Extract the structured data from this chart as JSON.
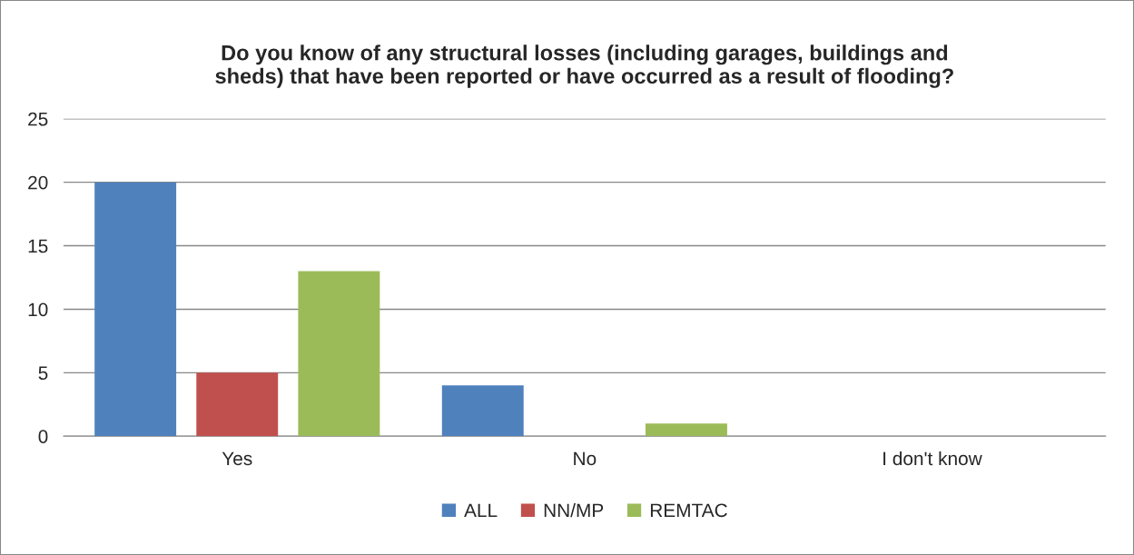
{
  "chart_data": {
    "type": "bar",
    "title": "Do you know of any structural losses (including garages, buildings and\nsheds) that have been reported or have occurred as a result of flooding?",
    "categories": [
      "Yes",
      "No",
      "I don't know"
    ],
    "series": [
      {
        "name": "ALL",
        "color": "#4f81bd",
        "values": [
          20,
          4,
          0
        ]
      },
      {
        "name": "NN/MP",
        "color": "#c0504d",
        "values": [
          5,
          0,
          0
        ]
      },
      {
        "name": "REMTAC",
        "color": "#9bbb59",
        "values": [
          13,
          1,
          0
        ]
      }
    ],
    "ylim": [
      0,
      25
    ],
    "yticks": [
      0,
      5,
      10,
      15,
      20,
      25
    ],
    "grid": "y",
    "legend": "bottom"
  }
}
